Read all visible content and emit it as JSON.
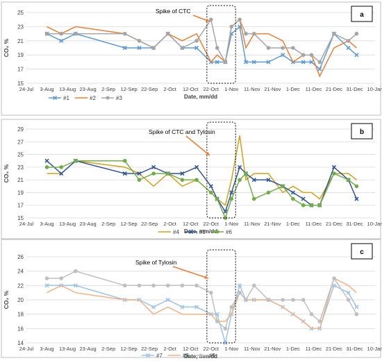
{
  "chart_data": [
    {
      "type": "line",
      "panel_label": "a",
      "annotation": "Spike of CTC",
      "xlabel": "Date, mm/dd",
      "ylabel": "CO₂ %",
      "ylim": [
        15,
        25
      ],
      "yticks": [
        15,
        17,
        19,
        21,
        23,
        25
      ],
      "x_tick_labels": [
        "24-Jul",
        "3-Aug",
        "13-Aug",
        "23-Aug",
        "2-Sep",
        "12-Sep",
        "22-Sep",
        "2-Oct",
        "12-Oct",
        "22-Oct",
        "1-Nov",
        "11-Nov",
        "21-Nov",
        "1-Dec",
        "11-Dec",
        "21-Dec",
        "31-Dec",
        "10-Jan"
      ],
      "x_start": "24-Jul",
      "x_end": "10-Jan",
      "legend_position": "bottom-left",
      "series": [
        {
          "name": "#1",
          "color": "#5b9bd5",
          "marker": "x",
          "x": [
            "3-Aug",
            "10-Aug",
            "17-Aug",
            "10-Sep",
            "17-Sep",
            "24-Sep",
            "1-Oct",
            "8-Oct",
            "15-Oct",
            "22-Oct",
            "25-Oct",
            "29-Oct",
            "1-Nov",
            "5-Nov",
            "8-Nov",
            "12-Nov",
            "19-Nov",
            "26-Nov",
            "1-Dec",
            "6-Dec",
            "10-Dec",
            "14-Dec",
            "21-Dec",
            "28-Dec",
            "1-Jan"
          ],
          "y": [
            22,
            21,
            22,
            20,
            20,
            20,
            22,
            20,
            20,
            18,
            18,
            18,
            22,
            23,
            18,
            18,
            18,
            19,
            18,
            18,
            18,
            17,
            22,
            20,
            19
          ]
        },
        {
          "name": "#2",
          "color": "#ed7d31",
          "marker": "none",
          "x": [
            "3-Aug",
            "10-Aug",
            "17-Aug",
            "10-Sep",
            "17-Sep",
            "24-Sep",
            "1-Oct",
            "8-Oct",
            "15-Oct",
            "22-Oct",
            "25-Oct",
            "29-Oct",
            "1-Nov",
            "5-Nov",
            "8-Nov",
            "12-Nov",
            "19-Nov",
            "26-Nov",
            "1-Dec",
            "6-Dec",
            "10-Dec",
            "14-Dec",
            "21-Dec",
            "28-Dec",
            "1-Jan"
          ],
          "y": [
            23,
            22,
            23,
            22,
            21,
            20,
            22,
            21,
            22,
            18,
            19,
            18,
            23,
            24,
            20,
            22,
            22,
            21,
            18,
            19,
            19,
            16,
            20,
            21,
            20
          ]
        },
        {
          "name": "#3",
          "color": "#a5a5a5",
          "marker": "circle",
          "x": [
            "3-Aug",
            "10-Aug",
            "17-Aug",
            "10-Sep",
            "17-Sep",
            "24-Sep",
            "1-Oct",
            "8-Oct",
            "15-Oct",
            "22-Oct",
            "25-Oct",
            "29-Oct",
            "1-Nov",
            "5-Nov",
            "8-Nov",
            "12-Nov",
            "19-Nov",
            "26-Nov",
            "1-Dec",
            "6-Dec",
            "10-Dec",
            "14-Dec",
            "21-Dec",
            "28-Dec",
            "1-Jan"
          ],
          "y": [
            22,
            22,
            22,
            22,
            21,
            20,
            22,
            20,
            21,
            24,
            20,
            18,
            23,
            24,
            22,
            22,
            20,
            20,
            20,
            19,
            19,
            18,
            22,
            21,
            22
          ]
        }
      ]
    },
    {
      "type": "line",
      "panel_label": "b",
      "annotation": "Spike of CTC and Tylosin",
      "xlabel": "Date, mm/dd",
      "ylabel": "CO₂ %",
      "ylim": [
        15,
        29
      ],
      "yticks": [
        15,
        17,
        19,
        21,
        23,
        25,
        27,
        29
      ],
      "x_tick_labels": [
        "24-Jul",
        "3-Aug",
        "13-Aug",
        "23-Aug",
        "2-Sep",
        "12-Sep",
        "22-Sep",
        "2-Oct",
        "12-Oct",
        "22-Oct",
        "1-Nov",
        "11-Nov",
        "21-Nov",
        "1-Dec",
        "11-Dec",
        "21-Dec",
        "31-Dec",
        "10-Jan"
      ],
      "x_start": "24-Jul",
      "x_end": "10-Jan",
      "legend_position": "bottom-center",
      "series": [
        {
          "name": "#4",
          "color": "#d4a017",
          "marker": "none",
          "x": [
            "3-Aug",
            "10-Aug",
            "17-Aug",
            "10-Sep",
            "17-Sep",
            "24-Sep",
            "1-Oct",
            "8-Oct",
            "15-Oct",
            "22-Oct",
            "25-Oct",
            "29-Oct",
            "1-Nov",
            "5-Nov",
            "8-Nov",
            "12-Nov",
            "19-Nov",
            "26-Nov",
            "1-Dec",
            "6-Dec",
            "10-Dec",
            "14-Dec",
            "21-Dec",
            "28-Dec",
            "1-Jan"
          ],
          "y": [
            22,
            22,
            24,
            23,
            22,
            20,
            22,
            20,
            21,
            19,
            18,
            17,
            21,
            28,
            21,
            22,
            22,
            19,
            20,
            19,
            19,
            18,
            22,
            22,
            21
          ]
        },
        {
          "name": "#5",
          "color": "#2f5597",
          "marker": "x",
          "x": [
            "3-Aug",
            "10-Aug",
            "17-Aug",
            "10-Sep",
            "17-Sep",
            "24-Sep",
            "1-Oct",
            "8-Oct",
            "15-Oct",
            "22-Oct",
            "25-Oct",
            "29-Oct",
            "1-Nov",
            "5-Nov",
            "8-Nov",
            "12-Nov",
            "19-Nov",
            "26-Nov",
            "1-Dec",
            "6-Dec",
            "10-Dec",
            "14-Dec",
            "21-Dec",
            "28-Dec",
            "1-Jan"
          ],
          "y": [
            24,
            22,
            24,
            22,
            22,
            23,
            22,
            22,
            23,
            20,
            18,
            16,
            19,
            23,
            22,
            21,
            21,
            20,
            19,
            18,
            17,
            17,
            23,
            21,
            18
          ]
        },
        {
          "name": "#6",
          "color": "#70ad47",
          "marker": "circle",
          "x": [
            "3-Aug",
            "10-Aug",
            "17-Aug",
            "10-Sep",
            "17-Sep",
            "24-Sep",
            "1-Oct",
            "8-Oct",
            "15-Oct",
            "22-Oct",
            "25-Oct",
            "29-Oct",
            "1-Nov",
            "5-Nov",
            "8-Nov",
            "12-Nov",
            "19-Nov",
            "26-Nov",
            "1-Dec",
            "6-Dec",
            "10-Dec",
            "14-Dec",
            "21-Dec",
            "28-Dec",
            "1-Jan"
          ],
          "y": [
            23,
            23,
            24,
            24,
            21,
            22,
            22,
            21,
            21,
            19,
            18,
            15,
            18,
            21,
            22,
            18,
            19,
            20,
            18,
            17,
            17,
            17,
            22,
            21,
            20
          ]
        }
      ]
    },
    {
      "type": "line",
      "panel_label": "c",
      "annotation": "Spike of Tylosin",
      "xlabel": "Date, mm/dd",
      "ylabel": "CO₂ %",
      "ylim": [
        14,
        26
      ],
      "yticks": [
        14,
        16,
        18,
        20,
        22,
        24,
        26
      ],
      "x_tick_labels": [
        "24-Jul",
        "3-Aug",
        "13-Aug",
        "23-Aug",
        "2-Sep",
        "12-Sep",
        "22-Sep",
        "2-Oct",
        "12-Oct",
        "22-Oct",
        "1-Nov",
        "11-Nov",
        "21-Nov",
        "1-Dec",
        "11-Dec",
        "21-Dec",
        "31-Dec",
        "10-Jan"
      ],
      "x_start": "24-Jul",
      "x_end": "10-Jan",
      "legend_position": "bottom-center",
      "series": [
        {
          "name": "#7",
          "color": "#9dc3e6",
          "marker": "x",
          "x": [
            "3-Aug",
            "10-Aug",
            "17-Aug",
            "10-Sep",
            "17-Sep",
            "24-Sep",
            "1-Oct",
            "8-Oct",
            "15-Oct",
            "22-Oct",
            "25-Oct",
            "29-Oct",
            "1-Nov",
            "5-Nov",
            "8-Nov",
            "12-Nov",
            "19-Nov",
            "26-Nov",
            "1-Dec",
            "6-Dec",
            "10-Dec",
            "14-Dec",
            "21-Dec",
            "28-Dec",
            "1-Jan"
          ],
          "y": [
            22,
            22,
            22,
            20,
            20,
            19,
            20,
            19,
            19,
            18,
            18,
            14,
            18,
            22,
            20,
            20,
            20,
            19,
            18,
            17,
            16,
            16,
            22,
            21,
            19
          ]
        },
        {
          "name": "#8",
          "color": "#f4b183",
          "marker": "none",
          "x": [
            "3-Aug",
            "10-Aug",
            "17-Aug",
            "10-Sep",
            "17-Sep",
            "24-Sep",
            "1-Oct",
            "8-Oct",
            "15-Oct",
            "22-Oct",
            "25-Oct",
            "29-Oct",
            "1-Nov",
            "5-Nov",
            "8-Nov",
            "12-Nov",
            "19-Nov",
            "26-Nov",
            "1-Dec",
            "6-Dec",
            "10-Dec",
            "14-Dec",
            "21-Dec",
            "28-Dec",
            "1-Jan"
          ],
          "y": [
            21,
            22,
            21,
            20,
            20,
            18,
            19,
            18,
            18,
            18,
            17,
            17,
            18,
            21,
            20,
            20,
            20,
            19,
            18,
            17,
            16,
            16,
            23,
            22,
            21
          ]
        },
        {
          "name": "#9",
          "color": "#bfbfbf",
          "marker": "circle",
          "x": [
            "3-Aug",
            "10-Aug",
            "17-Aug",
            "10-Sep",
            "17-Sep",
            "24-Sep",
            "1-Oct",
            "8-Oct",
            "15-Oct",
            "22-Oct",
            "25-Oct",
            "29-Oct",
            "1-Nov",
            "5-Nov",
            "8-Nov",
            "12-Nov",
            "19-Nov",
            "26-Nov",
            "1-Dec",
            "6-Dec",
            "10-Dec",
            "14-Dec",
            "21-Dec",
            "28-Dec",
            "1-Jan"
          ],
          "y": [
            23,
            23,
            24,
            22,
            22,
            22,
            22,
            22,
            22,
            21,
            17,
            16,
            19,
            21,
            20,
            22,
            20,
            20,
            20,
            20,
            18,
            17,
            23,
            20,
            18
          ]
        }
      ]
    }
  ]
}
